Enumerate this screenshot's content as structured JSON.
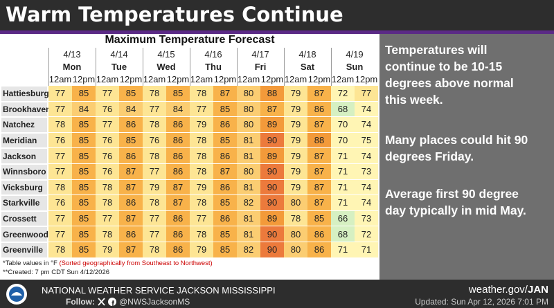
{
  "header": {
    "title": "Warm Temperatures Continue"
  },
  "table": {
    "title": "Maximum Temperature Forecast",
    "days": [
      {
        "date": "4/13",
        "day": "Mon"
      },
      {
        "date": "4/14",
        "day": "Tue"
      },
      {
        "date": "4/15",
        "day": "Wed"
      },
      {
        "date": "4/16",
        "day": "Thu"
      },
      {
        "date": "4/17",
        "day": "Fri"
      },
      {
        "date": "4/18",
        "day": "Sat"
      },
      {
        "date": "4/19",
        "day": "Sun"
      }
    ],
    "periods": [
      "12am",
      "12pm"
    ],
    "rows": [
      {
        "city": "Hattiesburg",
        "values": [
          77,
          85,
          77,
          85,
          78,
          85,
          78,
          87,
          80,
          88,
          79,
          87,
          72,
          77
        ]
      },
      {
        "city": "Brookhaven",
        "values": [
          77,
          84,
          76,
          84,
          77,
          84,
          77,
          85,
          80,
          87,
          79,
          86,
          68,
          74
        ]
      },
      {
        "city": "Natchez",
        "values": [
          78,
          85,
          77,
          86,
          78,
          86,
          79,
          86,
          80,
          89,
          79,
          87,
          70,
          74
        ]
      },
      {
        "city": "Meridian",
        "values": [
          76,
          85,
          76,
          85,
          76,
          86,
          78,
          85,
          81,
          90,
          79,
          88,
          70,
          75
        ]
      },
      {
        "city": "Jackson",
        "values": [
          77,
          85,
          76,
          86,
          78,
          86,
          78,
          86,
          81,
          89,
          79,
          87,
          71,
          74
        ]
      },
      {
        "city": "Winnsboro",
        "values": [
          77,
          85,
          76,
          87,
          77,
          86,
          78,
          87,
          80,
          90,
          79,
          87,
          71,
          73
        ]
      },
      {
        "city": "Vicksburg",
        "values": [
          78,
          85,
          78,
          87,
          79,
          87,
          79,
          86,
          81,
          90,
          79,
          87,
          71,
          74
        ]
      },
      {
        "city": "Starkville",
        "values": [
          76,
          85,
          78,
          86,
          78,
          87,
          78,
          85,
          82,
          90,
          80,
          87,
          71,
          74
        ]
      },
      {
        "city": "Crossett",
        "values": [
          77,
          85,
          77,
          87,
          77,
          86,
          77,
          86,
          81,
          89,
          78,
          85,
          66,
          73
        ]
      },
      {
        "city": "Greenwood",
        "values": [
          77,
          85,
          78,
          86,
          77,
          86,
          78,
          85,
          81,
          90,
          80,
          86,
          68,
          72
        ]
      },
      {
        "city": "Greenville",
        "values": [
          78,
          85,
          79,
          87,
          78,
          86,
          79,
          85,
          82,
          90,
          80,
          86,
          71,
          71
        ]
      }
    ],
    "notes": {
      "units": "*Table values in °F",
      "sort": "(Sorted geographically from Southeast to Northwest)",
      "created": "**Created: 7 pm CDT Sun 4/12/2026"
    }
  },
  "panel": {
    "paragraphs": [
      [
        "Temperatures will",
        "continue to be 10-15",
        "degrees above normal",
        "this week."
      ],
      [
        "Many places could hit 90",
        "degrees Friday."
      ],
      [
        "Average first 90 degree",
        "day typically in mid May."
      ]
    ]
  },
  "footer": {
    "office": "NATIONAL WEATHER SERVICE JACKSON MISSISSIPPI",
    "follow": "Follow:",
    "handle": "@NWSJacksonMS",
    "site": "weather.gov/",
    "site_office": "JAN",
    "updated": "Updated: Sun Apr 12, 2026 7:01 PM"
  }
}
